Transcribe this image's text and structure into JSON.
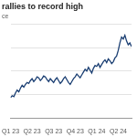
{
  "chart_data": {
    "type": "line",
    "title": "rallies to record high",
    "subtitle": "ce",
    "categories": [
      "Q1 23",
      null,
      null,
      null,
      null,
      null,
      null,
      null,
      null,
      null,
      null,
      null,
      null,
      "Q2 23",
      null,
      null,
      null,
      null,
      null,
      null,
      null,
      null,
      null,
      null,
      null,
      null,
      "Q3 23",
      null,
      null,
      null,
      null,
      null,
      null,
      null,
      null,
      null,
      null,
      null,
      null,
      "Q4 23",
      null,
      null,
      null,
      null,
      null,
      null,
      null,
      null,
      null,
      null,
      null,
      null,
      "Q1 24",
      null,
      null,
      null,
      null,
      null,
      null,
      null,
      null,
      null,
      null,
      null,
      null,
      "Q2 24",
      null,
      null,
      null,
      null,
      null,
      null,
      null,
      null
    ],
    "values": [
      22,
      24,
      23,
      27,
      30,
      28,
      32,
      35,
      33,
      36,
      38,
      37,
      40,
      42,
      39,
      41,
      44,
      43,
      40,
      42,
      45,
      44,
      41,
      39,
      42,
      40,
      38,
      41,
      43,
      40,
      37,
      39,
      42,
      44,
      41,
      38,
      36,
      39,
      42,
      44,
      47,
      45,
      43,
      46,
      49,
      52,
      50,
      54,
      51,
      48,
      53,
      56,
      55,
      58,
      54,
      57,
      60,
      62,
      59,
      63,
      61,
      58,
      60,
      64,
      66,
      72,
      80,
      86,
      84,
      88,
      82,
      78,
      80,
      76
    ],
    "color": "#1a3e72",
    "marker": "none",
    "line_style": "solid",
    "ylim": [
      0,
      100
    ],
    "yticks": [
      0,
      25,
      50,
      75,
      100
    ],
    "grid": true,
    "tick_labels": "x"
  }
}
